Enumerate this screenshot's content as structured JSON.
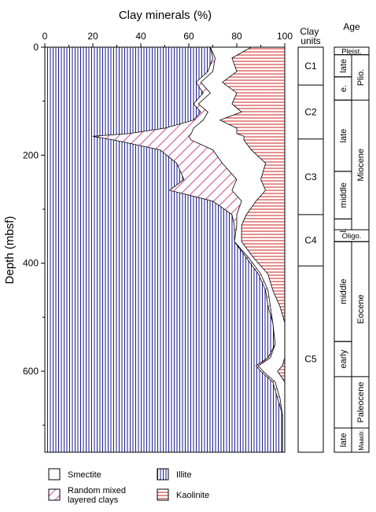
{
  "chart_data": {
    "type": "area",
    "title": "",
    "xlabel": "Clay minerals (%)",
    "ylabel": "Depth (mbsf)",
    "xlim": [
      0,
      100
    ],
    "ylim": [
      0,
      750
    ],
    "x_ticks": [
      "0",
      "20",
      "40",
      "60",
      "80",
      "100"
    ],
    "y_ticks": [
      "0",
      "200",
      "400",
      "600"
    ],
    "stacking": "cumulative percent from 0 (left) to 100 (right)",
    "series": [
      {
        "name": "Illite",
        "pattern": "vertical-lines",
        "color": "#1a1a8c",
        "depth": [
          0,
          20,
          45,
          65,
          85,
          105,
          120,
          135,
          150,
          160,
          165,
          172,
          190,
          215,
          245,
          265,
          285,
          310,
          330,
          360,
          390,
          420,
          450,
          480,
          510,
          550,
          575,
          590,
          600,
          620,
          650,
          680,
          710,
          730,
          745
        ],
        "cum_top": [
          69,
          70,
          68,
          63,
          66,
          62,
          65,
          62,
          50,
          35,
          20,
          29,
          48,
          55,
          58,
          52,
          70,
          78,
          79,
          79,
          84,
          89,
          92,
          93,
          95,
          96,
          93,
          88,
          90,
          95,
          97,
          99,
          99,
          99,
          99
        ]
      },
      {
        "name": "Random mixed layered clays",
        "pattern": "diagonal-lines",
        "color": "#cc3380",
        "depth": [
          0,
          20,
          45,
          65,
          85,
          105,
          120,
          135,
          150,
          160,
          165,
          172,
          190,
          215,
          245,
          265,
          285,
          310,
          330,
          360,
          390,
          420,
          450,
          480,
          510,
          550,
          575,
          590,
          600,
          620,
          650,
          680,
          710,
          730,
          745
        ],
        "cum_top": [
          69,
          71,
          70,
          65,
          69,
          64,
          68,
          66,
          62,
          61,
          60,
          61,
          70,
          74,
          80,
          78,
          82,
          80,
          80,
          79,
          85,
          90,
          93,
          94,
          95,
          96,
          94,
          89,
          91,
          96,
          98,
          99,
          99,
          99,
          99
        ]
      },
      {
        "name": "Smectite",
        "pattern": "none",
        "color": "#ffffff",
        "depth": [
          0,
          20,
          45,
          65,
          85,
          105,
          120,
          135,
          150,
          160,
          165,
          172,
          190,
          215,
          245,
          265,
          285,
          310,
          330,
          360,
          390,
          420,
          450,
          480,
          510,
          550,
          575,
          590,
          600,
          620,
          650,
          680,
          710,
          730,
          745
        ],
        "cum_top": [
          86,
          78,
          80,
          74,
          80,
          78,
          82,
          73,
          80,
          80,
          83,
          83,
          86,
          92,
          90,
          92,
          88,
          84,
          82,
          82,
          87,
          93,
          95,
          98,
          100,
          100,
          100,
          99,
          97,
          100,
          100,
          100,
          100,
          100,
          100
        ]
      },
      {
        "name": "Kaolinite",
        "pattern": "horizontal-lines",
        "color": "#cc2222",
        "depth": [
          0,
          745
        ],
        "cum_top": [
          100,
          100
        ]
      }
    ],
    "legend": {
      "placement": "bottom",
      "entries": [
        {
          "label": "Smectite",
          "pattern": "none"
        },
        {
          "label": "Random mixed\nlayered clays",
          "pattern": "diagonal-lines"
        },
        {
          "label": "Illite",
          "pattern": "vertical-lines"
        },
        {
          "label": "Kaolinite",
          "pattern": "horizontal-lines"
        }
      ]
    },
    "clay_units": {
      "header": "Clay\nunits",
      "units": [
        {
          "label": "C1",
          "from": 0,
          "to": 70
        },
        {
          "label": "C2",
          "from": 70,
          "to": 170
        },
        {
          "label": "C3",
          "from": 170,
          "to": 310
        },
        {
          "label": "C4",
          "from": 310,
          "to": 405
        },
        {
          "label": "C5",
          "from": 405,
          "to": 750
        }
      ]
    },
    "age": {
      "header": "Age",
      "epochs": [
        {
          "label": "Pleist.",
          "from": 0,
          "to": 14,
          "orientation": "horizontal"
        },
        {
          "label": "Plio.",
          "from": 14,
          "to": 98,
          "orientation": "vertical"
        },
        {
          "label": "Miocene",
          "from": 98,
          "to": 338,
          "orientation": "vertical"
        },
        {
          "label": "Oligo.",
          "from": 338,
          "to": 360,
          "orientation": "horizontal"
        },
        {
          "label": "Eocene",
          "from": 360,
          "to": 610,
          "orientation": "vertical"
        },
        {
          "label": "Paleocene",
          "from": 610,
          "to": 705,
          "orientation": "vertical"
        },
        {
          "label": "Maastr.",
          "from": 705,
          "to": 750,
          "orientation": "vertical"
        }
      ],
      "subdivisions": [
        {
          "label": "late",
          "from": 14,
          "to": 55
        },
        {
          "label": "e.",
          "from": 55,
          "to": 98
        },
        {
          "label": "late",
          "from": 98,
          "to": 230
        },
        {
          "label": "middle",
          "from": 230,
          "to": 318
        },
        {
          "label": "l.",
          "from": 318,
          "to": 360
        },
        {
          "label": "middle",
          "from": 360,
          "to": 545
        },
        {
          "label": "early",
          "from": 545,
          "to": 610
        },
        {
          "label": "late",
          "from": 705,
          "to": 750
        }
      ]
    }
  }
}
